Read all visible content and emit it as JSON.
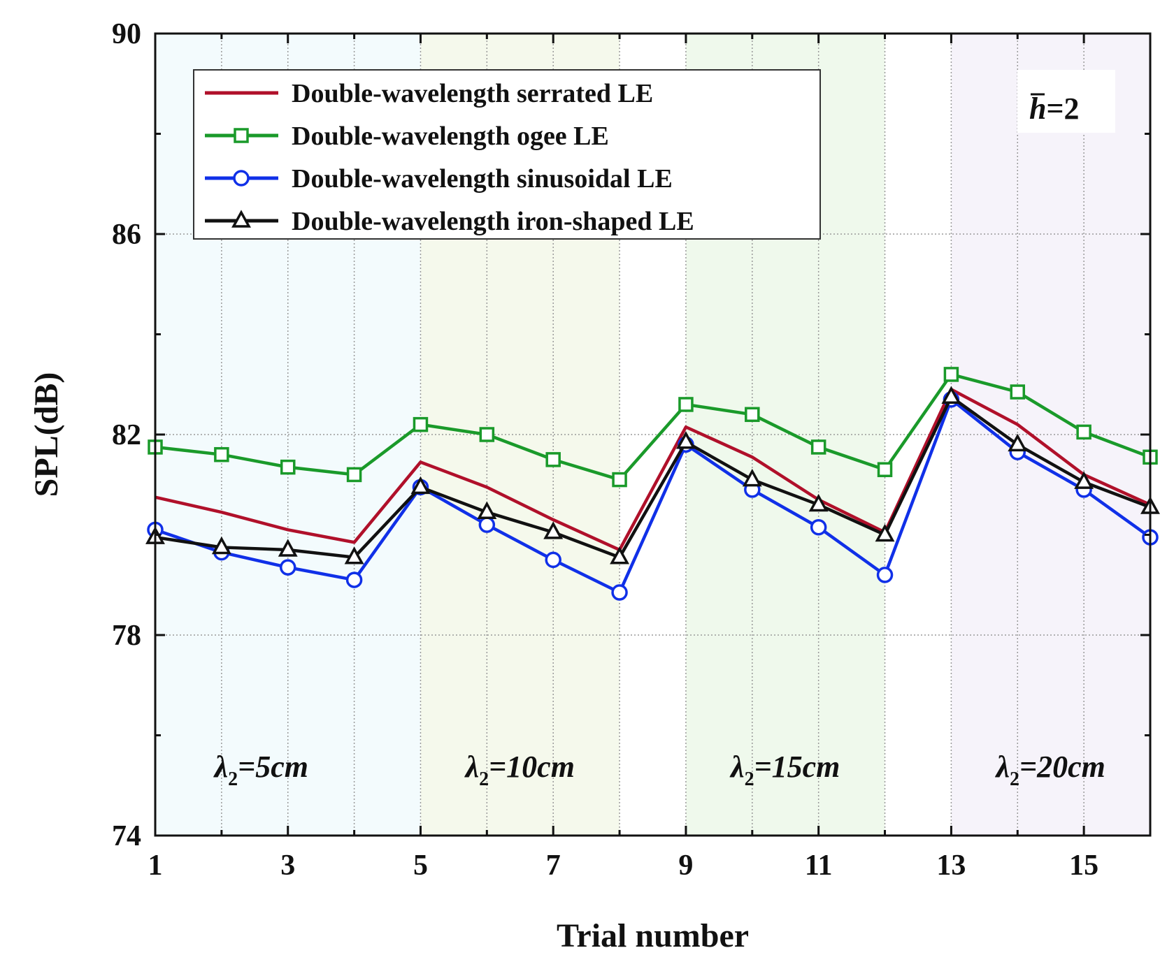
{
  "chart_data": {
    "type": "line",
    "xlabel": "Trial number",
    "ylabel": "SPL(dB)",
    "xlim": [
      1,
      16
    ],
    "ylim": [
      74,
      90
    ],
    "xticks": [
      1,
      3,
      5,
      7,
      9,
      11,
      13,
      15
    ],
    "yticks": [
      74,
      78,
      82,
      86,
      90
    ],
    "x": [
      1,
      2,
      3,
      4,
      5,
      6,
      7,
      8,
      9,
      10,
      11,
      12,
      13,
      14,
      15,
      16
    ],
    "series": [
      {
        "name": "Double-wavelength serrated LE",
        "color": "#b0102a",
        "marker": "none",
        "values": [
          80.75,
          80.45,
          80.1,
          79.85,
          81.45,
          80.95,
          80.3,
          79.7,
          82.15,
          81.55,
          80.7,
          80.05,
          82.9,
          82.2,
          81.2,
          80.6
        ]
      },
      {
        "name": "Double-wavelength ogee LE",
        "color": "#1a9a2a",
        "marker": "square",
        "values": [
          81.75,
          81.6,
          81.35,
          81.2,
          82.2,
          82.0,
          81.5,
          81.1,
          82.6,
          82.4,
          81.75,
          81.3,
          83.2,
          82.85,
          82.05,
          81.55
        ]
      },
      {
        "name": "Double-wavelength sinusoidal LE",
        "color": "#1030e8",
        "marker": "circle",
        "values": [
          80.1,
          79.65,
          79.35,
          79.1,
          80.95,
          80.2,
          79.5,
          78.85,
          81.8,
          80.9,
          80.15,
          79.2,
          82.7,
          81.65,
          80.9,
          79.95
        ]
      },
      {
        "name": "Double-wavelength iron-shaped LE",
        "color": "#111111",
        "marker": "triangle",
        "values": [
          79.95,
          79.75,
          79.7,
          79.55,
          80.95,
          80.45,
          80.05,
          79.55,
          81.85,
          81.1,
          80.6,
          80.0,
          82.75,
          81.8,
          81.05,
          80.55
        ]
      }
    ],
    "legend_position": "top-left",
    "annotation": {
      "symbol": "h",
      "text": "=2"
    },
    "regions": [
      {
        "from": 1,
        "to": 5,
        "color": "#f3fbfd",
        "symbol": "λ",
        "subscript": "2",
        "text": "=5cm",
        "label_x": 2.6
      },
      {
        "from": 5,
        "to": 8,
        "color": "#f5f9ec",
        "symbol": "λ",
        "subscript": "2",
        "text": "=10cm",
        "label_x": 6.5
      },
      {
        "from": 9,
        "to": 12,
        "color": "#eff9ec",
        "symbol": "λ",
        "subscript": "2",
        "text": "=15cm",
        "label_x": 10.5
      },
      {
        "from": 13,
        "to": 16,
        "color": "#f6f3fa",
        "symbol": "λ",
        "subscript": "2",
        "text": "=20cm",
        "label_x": 14.5
      }
    ]
  }
}
